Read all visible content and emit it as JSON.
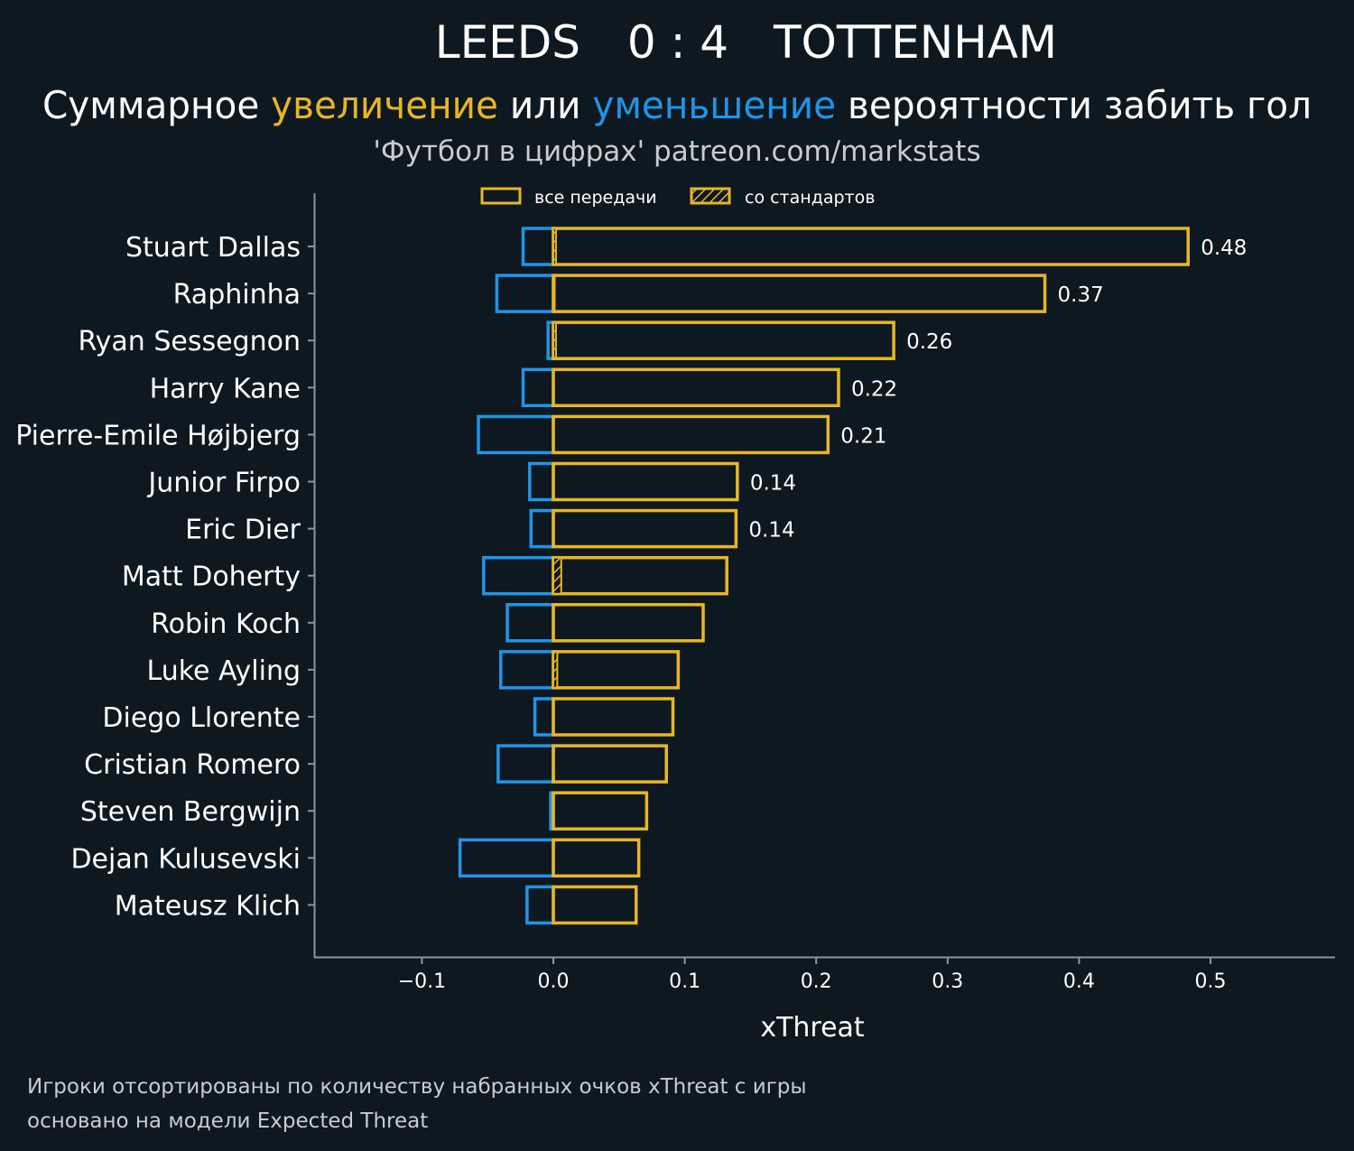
{
  "header": {
    "home_team": "LEEDS",
    "score": "0 : 4",
    "away_team": "TOTTENHAM",
    "subtitle_prefix": "Суммарное ",
    "subtitle_increase": "увеличение",
    "subtitle_mid": " или ",
    "subtitle_decrease": "уменьшение",
    "subtitle_suffix": " вероятности забить гол",
    "source": "'Футбол в цифрах' patreon.com/markstats"
  },
  "legend": {
    "all_passes": "все передачи",
    "set_pieces": "со стандартов"
  },
  "footer": {
    "line1": "Игроки отсортированы по количеству набранных очков xThreat с игры",
    "line2": "основано на модели Expected Threat"
  },
  "colors": {
    "background": "#0e1820",
    "increase": "#e8b624",
    "decrease": "#1f95e6",
    "axis": "#8c959c"
  },
  "chart_data": {
    "type": "bar",
    "orientation": "horizontal",
    "xlabel": "xThreat",
    "xlim": [
      -0.182,
      0.595
    ],
    "xticks": [
      -0.1,
      0.0,
      0.1,
      0.2,
      0.3,
      0.4,
      0.5
    ],
    "xtick_labels": [
      "−0.1",
      "0.0",
      "0.1",
      "0.2",
      "0.3",
      "0.4",
      "0.5"
    ],
    "categories": [
      "Stuart Dallas",
      "Raphinha",
      "Ryan Sessegnon",
      "Harry Kane",
      "Pierre-Emile Højbjerg",
      "Junior Firpo",
      "Eric Dier",
      "Matt Doherty",
      "Robin Koch",
      "Luke Ayling",
      "Diego Llorente",
      "Cristian Romero",
      "Steven Bergwijn",
      "Dejan Kulusevski",
      "Mateusz Klich"
    ],
    "series": [
      {
        "name": "увеличение (все передачи)",
        "values": [
          0.483,
          0.374,
          0.259,
          0.217,
          0.209,
          0.14,
          0.139,
          0.132,
          0.114,
          0.095,
          0.091,
          0.086,
          0.071,
          0.065,
          0.063
        ]
      },
      {
        "name": "увеличение (со стандартов)",
        "values": [
          0.002,
          0.001,
          0.002,
          0.0,
          0.0,
          0.0,
          0.0,
          0.006,
          0.0,
          0.003,
          0.0,
          0.0,
          0.0,
          0.0,
          0.0
        ]
      },
      {
        "name": "уменьшение",
        "values": [
          -0.023,
          -0.043,
          -0.004,
          -0.023,
          -0.057,
          -0.018,
          -0.017,
          -0.053,
          -0.035,
          -0.04,
          -0.014,
          -0.042,
          -0.002,
          -0.071,
          -0.02
        ]
      }
    ],
    "value_labels": [
      "0.48",
      "0.37",
      "0.26",
      "0.22",
      "0.21",
      "0.14",
      "0.14",
      "",
      "",
      "",
      "",
      "",
      "",
      "",
      ""
    ],
    "legend_position": "top-center"
  }
}
